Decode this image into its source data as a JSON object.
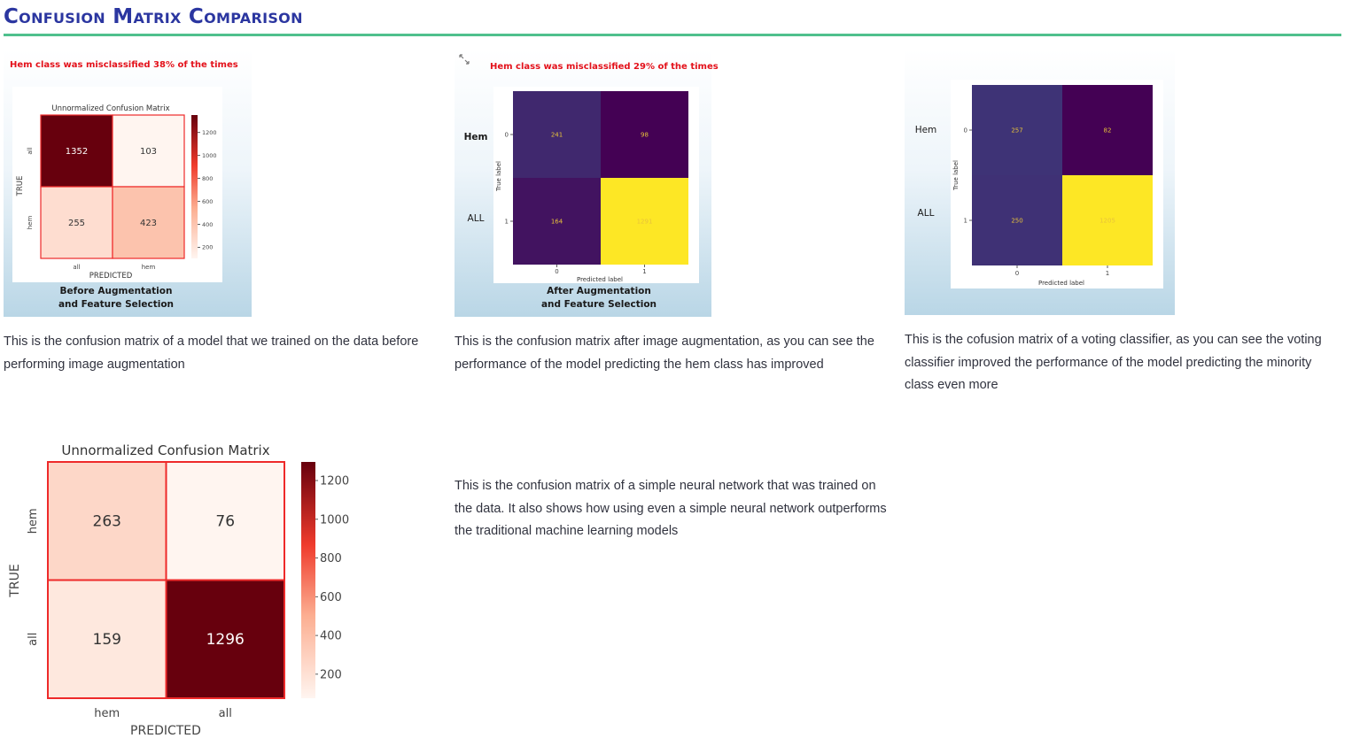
{
  "page": {
    "title": "Confusion Matrix Comparison"
  },
  "cards": {
    "before": {
      "note": "Hem class was misclassified 38% of the times",
      "caption": [
        "Before Augmentation",
        "and Feature Selection"
      ],
      "description": "This is the confusion matrix of a model that we trained on the data before performing image augmentation",
      "chart": {
        "type": "heatmap",
        "title": "Unnormalized Confusion Matrix",
        "xlabel": "PREDICTED",
        "ylabel": "TRUE",
        "x_ticks": [
          "all",
          "hem"
        ],
        "y_ticks": [
          "all",
          "hem"
        ],
        "values": [
          [
            1352,
            103
          ],
          [
            255,
            423
          ]
        ],
        "colorbar_ticks": [
          "1200",
          "1000",
          "800",
          "600",
          "400",
          "200"
        ],
        "colormap": "Reds"
      }
    },
    "after": {
      "note": "Hem class was misclassified 29% of the times",
      "caption": [
        "After Augmentation",
        "and Feature Selection"
      ],
      "description": "This is the confusion matrix after image augmentation, as you can see the performance of the model predicting the hem class has improved",
      "row_labels": [
        "Hem",
        "ALL"
      ],
      "chart": {
        "type": "heatmap",
        "xlabel": "Predicted label",
        "ylabel": "True label",
        "x_ticks": [
          "0",
          "1"
        ],
        "y_ticks": [
          "0",
          "1"
        ],
        "values": [
          [
            241,
            98
          ],
          [
            164,
            1291
          ]
        ],
        "colormap": "viridis"
      }
    },
    "voting": {
      "description": "This is the cofusion matrix of a voting classifier, as you can see the voting classifier improved the performance of the model predicting the minority class even more",
      "row_labels": [
        "Hem",
        "ALL"
      ],
      "chart": {
        "type": "heatmap",
        "xlabel": "Predicted label",
        "ylabel": "True label",
        "x_ticks": [
          "0",
          "1"
        ],
        "y_ticks": [
          "0",
          "1"
        ],
        "values": [
          [
            257,
            82
          ],
          [
            250,
            1205
          ]
        ],
        "colormap": "viridis"
      }
    },
    "nn": {
      "description": "This is the confusion matrix of a simple neural network that was trained on the data. It also shows how using even a simple neural network outperforms the traditional machine learning models",
      "chart": {
        "type": "heatmap",
        "title": "Unnormalized Confusion Matrix",
        "xlabel": "PREDICTED",
        "ylabel": "TRUE",
        "x_ticks": [
          "hem",
          "all"
        ],
        "y_ticks": [
          "hem",
          "all"
        ],
        "values": [
          [
            263,
            76
          ],
          [
            159,
            1296
          ]
        ],
        "colorbar_ticks": [
          "1200",
          "1000",
          "800",
          "600",
          "400",
          "200"
        ],
        "colormap": "Reds"
      }
    }
  }
}
